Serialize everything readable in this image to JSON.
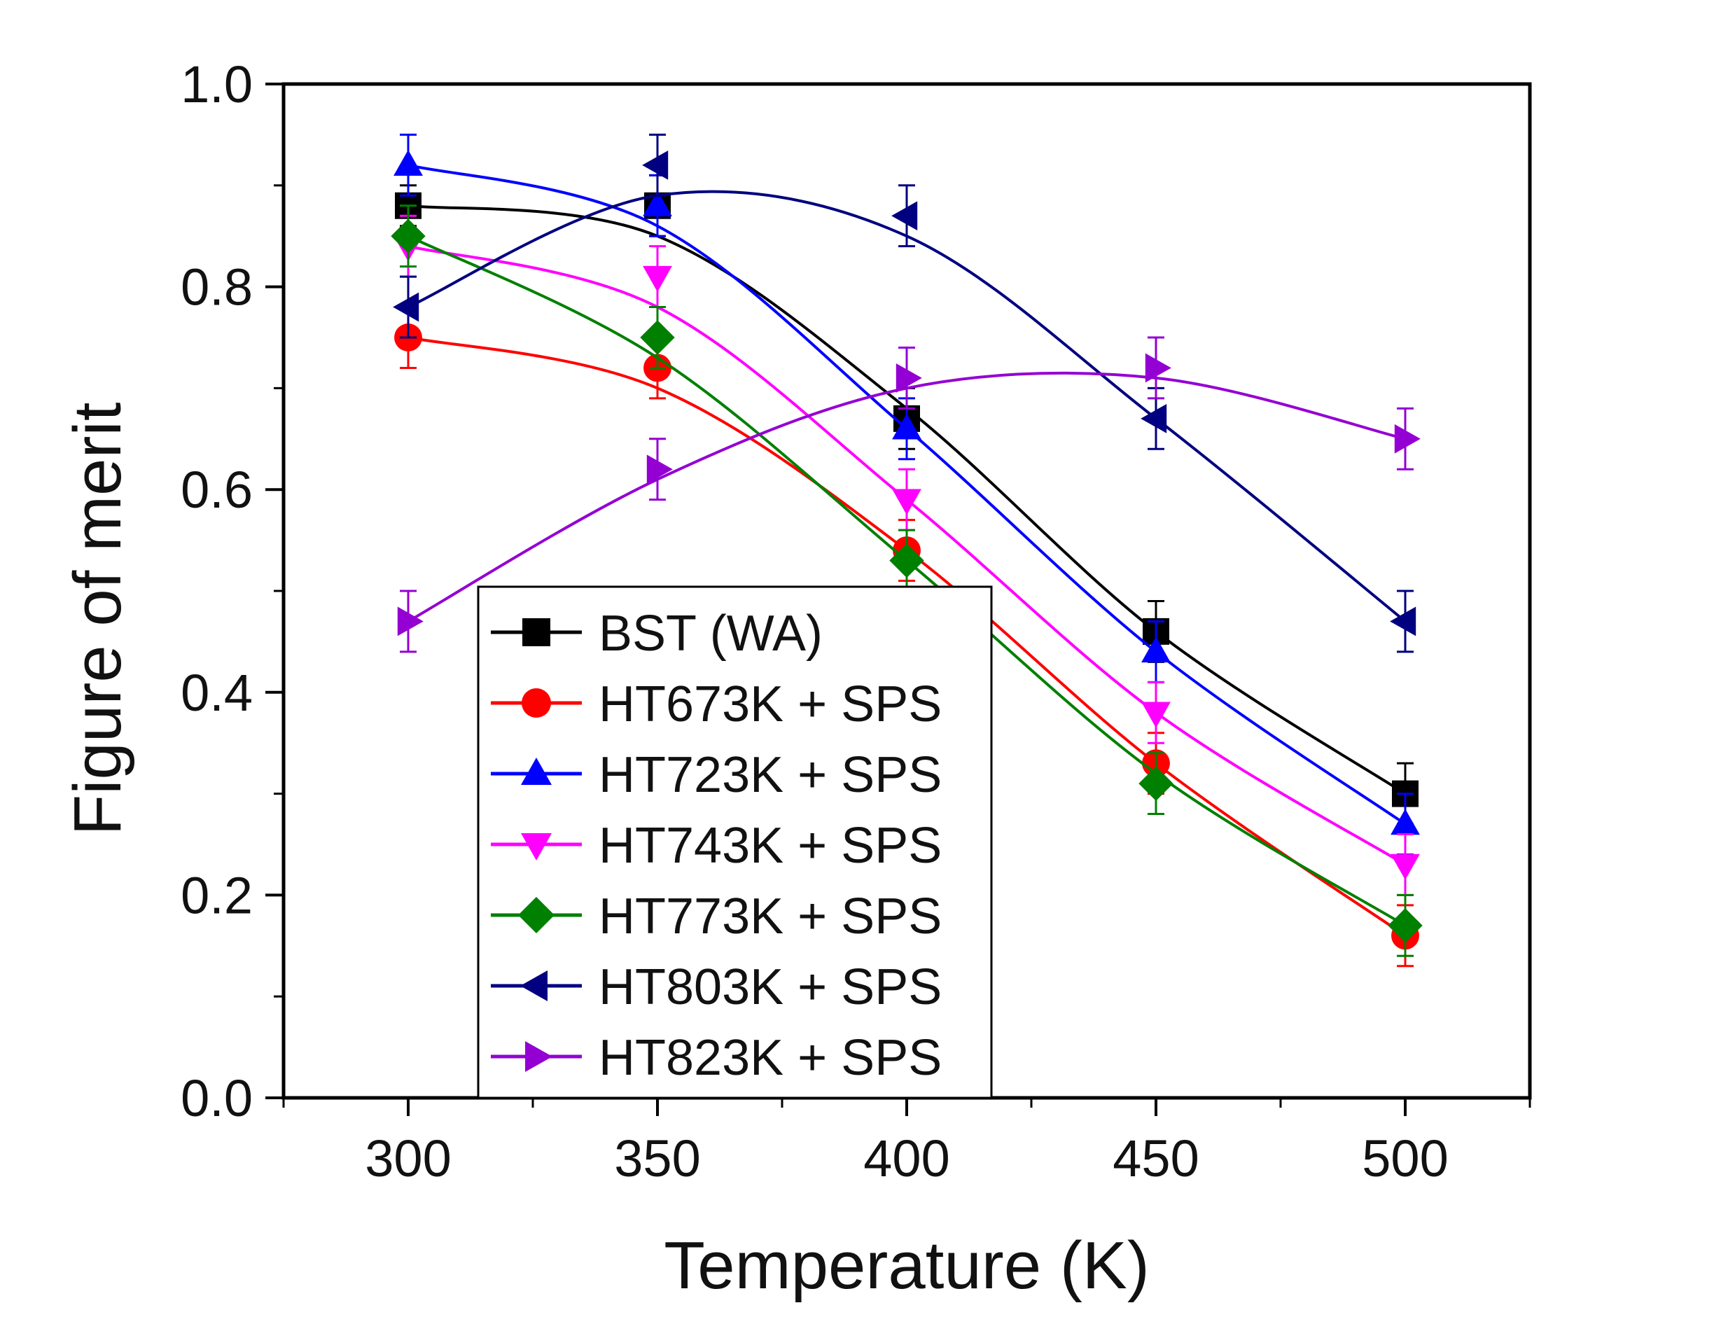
{
  "chart_data": {
    "type": "line",
    "title": "",
    "xlabel": "Temperature (K)",
    "ylabel": "Figure of merit",
    "xlim": [
      275,
      525
    ],
    "ylim": [
      0.0,
      1.0
    ],
    "xticks": [
      300,
      350,
      400,
      450,
      500
    ],
    "xtick_labels": [
      "300",
      "350",
      "400",
      "450",
      "500"
    ],
    "yticks": [
      0.0,
      0.2,
      0.4,
      0.6,
      0.8,
      1.0
    ],
    "ytick_labels": [
      "0.0",
      "0.2",
      "0.4",
      "0.6",
      "0.8",
      "1.0"
    ],
    "grid": false,
    "legend_position": "lower-left",
    "x": [
      300,
      350,
      400,
      450,
      500
    ],
    "series": [
      {
        "name": "BST (WA)",
        "marker": "square",
        "color": "#000000",
        "values": [
          0.88,
          0.88,
          0.67,
          0.46,
          0.3
        ],
        "errors": [
          0.02,
          0.03,
          0.03,
          0.03,
          0.03
        ],
        "fit": [
          0.88,
          0.85,
          0.68,
          0.46,
          0.3
        ]
      },
      {
        "name": "HT673K + SPS",
        "marker": "circle",
        "color": "#ff0000",
        "values": [
          0.75,
          0.72,
          0.54,
          0.33,
          0.16
        ],
        "errors": [
          0.03,
          0.03,
          0.03,
          0.03,
          0.03
        ],
        "fit": [
          0.75,
          0.7,
          0.54,
          0.33,
          0.16
        ]
      },
      {
        "name": "HT723K + SPS",
        "marker": "triangle-up",
        "color": "#0000ff",
        "values": [
          0.92,
          0.88,
          0.66,
          0.44,
          0.27
        ],
        "errors": [
          0.03,
          0.03,
          0.03,
          0.03,
          0.03
        ],
        "fit": [
          0.92,
          0.86,
          0.66,
          0.44,
          0.27
        ]
      },
      {
        "name": "HT743K + SPS",
        "marker": "triangle-down",
        "color": "#ff00ff",
        "values": [
          0.84,
          0.81,
          0.59,
          0.38,
          0.23
        ],
        "errors": [
          0.03,
          0.03,
          0.03,
          0.03,
          0.03
        ],
        "fit": [
          0.84,
          0.78,
          0.59,
          0.38,
          0.23
        ]
      },
      {
        "name": "HT773K + SPS",
        "marker": "diamond",
        "color": "#008000",
        "values": [
          0.85,
          0.75,
          0.53,
          0.31,
          0.17
        ],
        "errors": [
          0.03,
          0.03,
          0.03,
          0.03,
          0.03
        ],
        "fit": [
          0.85,
          0.73,
          0.53,
          0.32,
          0.17
        ]
      },
      {
        "name": "HT803K + SPS",
        "marker": "triangle-left",
        "color": "#000080",
        "values": [
          0.78,
          0.92,
          0.87,
          0.67,
          0.47
        ],
        "errors": [
          0.03,
          0.03,
          0.03,
          0.03,
          0.03
        ],
        "fit": [
          0.78,
          0.89,
          0.85,
          0.67,
          0.47
        ]
      },
      {
        "name": "HT823K + SPS",
        "marker": "triangle-right",
        "color": "#9400d3",
        "values": [
          0.47,
          0.62,
          0.71,
          0.72,
          0.65
        ],
        "errors": [
          0.03,
          0.03,
          0.03,
          0.03,
          0.03
        ],
        "fit": [
          0.47,
          0.61,
          0.7,
          0.71,
          0.65
        ]
      }
    ]
  }
}
